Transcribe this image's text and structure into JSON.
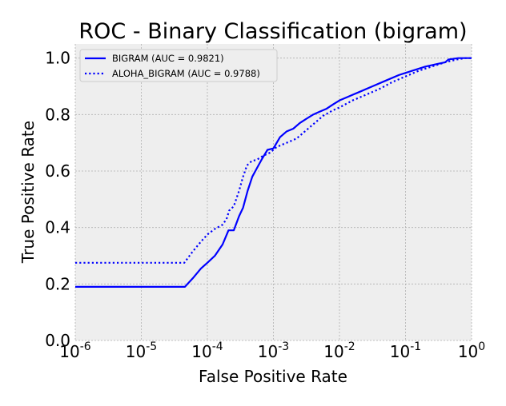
{
  "chart_data": {
    "type": "line",
    "title": "ROC - Binary Classification (bigram)",
    "xlabel": "False Positive Rate",
    "ylabel": "True Positive Rate",
    "xscale": "log",
    "xlim": [
      1e-06,
      1
    ],
    "ylim": [
      0.0,
      1.05
    ],
    "grid": true,
    "legend_position": "top-left",
    "x_ticks": [
      {
        "base": "10",
        "exp": "-6",
        "value": 1e-06
      },
      {
        "base": "10",
        "exp": "-5",
        "value": 1e-05
      },
      {
        "base": "10",
        "exp": "-4",
        "value": 0.0001
      },
      {
        "base": "10",
        "exp": "-3",
        "value": 0.001
      },
      {
        "base": "10",
        "exp": "-2",
        "value": 0.01
      },
      {
        "base": "10",
        "exp": "-1",
        "value": 0.1
      },
      {
        "base": "10",
        "exp": "0",
        "value": 1
      }
    ],
    "y_ticks": [
      "0.0",
      "0.2",
      "0.4",
      "0.6",
      "0.8",
      "1.0"
    ],
    "series": [
      {
        "name": "BIGRAM (AUC = 0.9821)",
        "color": "#0000ff",
        "style": "solid",
        "points": [
          [
            1e-06,
            0.19
          ],
          [
            4.57e-05,
            0.19
          ],
          [
            6e-05,
            0.22
          ],
          [
            8e-05,
            0.255
          ],
          [
            0.0001,
            0.275
          ],
          [
            0.00013,
            0.3
          ],
          [
            0.00017,
            0.34
          ],
          [
            0.000209,
            0.39
          ],
          [
            0.000251,
            0.39
          ],
          [
            0.000302,
            0.44
          ],
          [
            0.000347,
            0.47
          ],
          [
            0.000407,
            0.53
          ],
          [
            0.000479,
            0.58
          ],
          [
            0.000562,
            0.61
          ],
          [
            0.000661,
            0.64
          ],
          [
            0.000813,
            0.675
          ],
          [
            0.001,
            0.68
          ],
          [
            0.00126,
            0.72
          ],
          [
            0.00158,
            0.74
          ],
          [
            0.002,
            0.75
          ],
          [
            0.00251,
            0.77
          ],
          [
            0.00316,
            0.785
          ],
          [
            0.004,
            0.8
          ],
          [
            0.005,
            0.81
          ],
          [
            0.0063,
            0.82
          ],
          [
            0.0079,
            0.835
          ],
          [
            0.01,
            0.85
          ],
          [
            0.0126,
            0.86
          ],
          [
            0.0158,
            0.87
          ],
          [
            0.02,
            0.88
          ],
          [
            0.0316,
            0.9
          ],
          [
            0.05,
            0.92
          ],
          [
            0.0794,
            0.94
          ],
          [
            0.126,
            0.955
          ],
          [
            0.2,
            0.97
          ],
          [
            0.316,
            0.98
          ],
          [
            0.398,
            0.985
          ],
          [
            0.447,
            0.995
          ],
          [
            0.631,
            1.0
          ],
          [
            1,
            1.0
          ]
        ]
      },
      {
        "name": "ALOHA_BIGRAM (AUC = 0.9788)",
        "color": "#0000ff",
        "style": "dotted",
        "points": [
          [
            1e-06,
            0.275
          ],
          [
            4.47e-05,
            0.275
          ],
          [
            6e-05,
            0.315
          ],
          [
            8e-05,
            0.35
          ],
          [
            0.0001,
            0.375
          ],
          [
            0.00013,
            0.395
          ],
          [
            0.00017,
            0.41
          ],
          [
            0.000195,
            0.43
          ],
          [
            0.000214,
            0.46
          ],
          [
            0.000251,
            0.475
          ],
          [
            0.000302,
            0.53
          ],
          [
            0.000347,
            0.58
          ],
          [
            0.000398,
            0.62
          ],
          [
            0.000468,
            0.635
          ],
          [
            0.000562,
            0.64
          ],
          [
            0.000708,
            0.655
          ],
          [
            0.000891,
            0.665
          ],
          [
            0.00112,
            0.685
          ],
          [
            0.00141,
            0.695
          ],
          [
            0.00178,
            0.705
          ],
          [
            0.00224,
            0.715
          ],
          [
            0.00282,
            0.735
          ],
          [
            0.00355,
            0.755
          ],
          [
            0.00447,
            0.775
          ],
          [
            0.00562,
            0.795
          ],
          [
            0.00794,
            0.815
          ],
          [
            0.01,
            0.825
          ],
          [
            0.0158,
            0.85
          ],
          [
            0.0251,
            0.87
          ],
          [
            0.0398,
            0.89
          ],
          [
            0.0631,
            0.915
          ],
          [
            0.1,
            0.935
          ],
          [
            0.158,
            0.955
          ],
          [
            0.251,
            0.97
          ],
          [
            0.398,
            0.985
          ],
          [
            0.6,
            0.995
          ],
          [
            0.8,
            1.0
          ],
          [
            1,
            1.0
          ]
        ]
      }
    ]
  }
}
